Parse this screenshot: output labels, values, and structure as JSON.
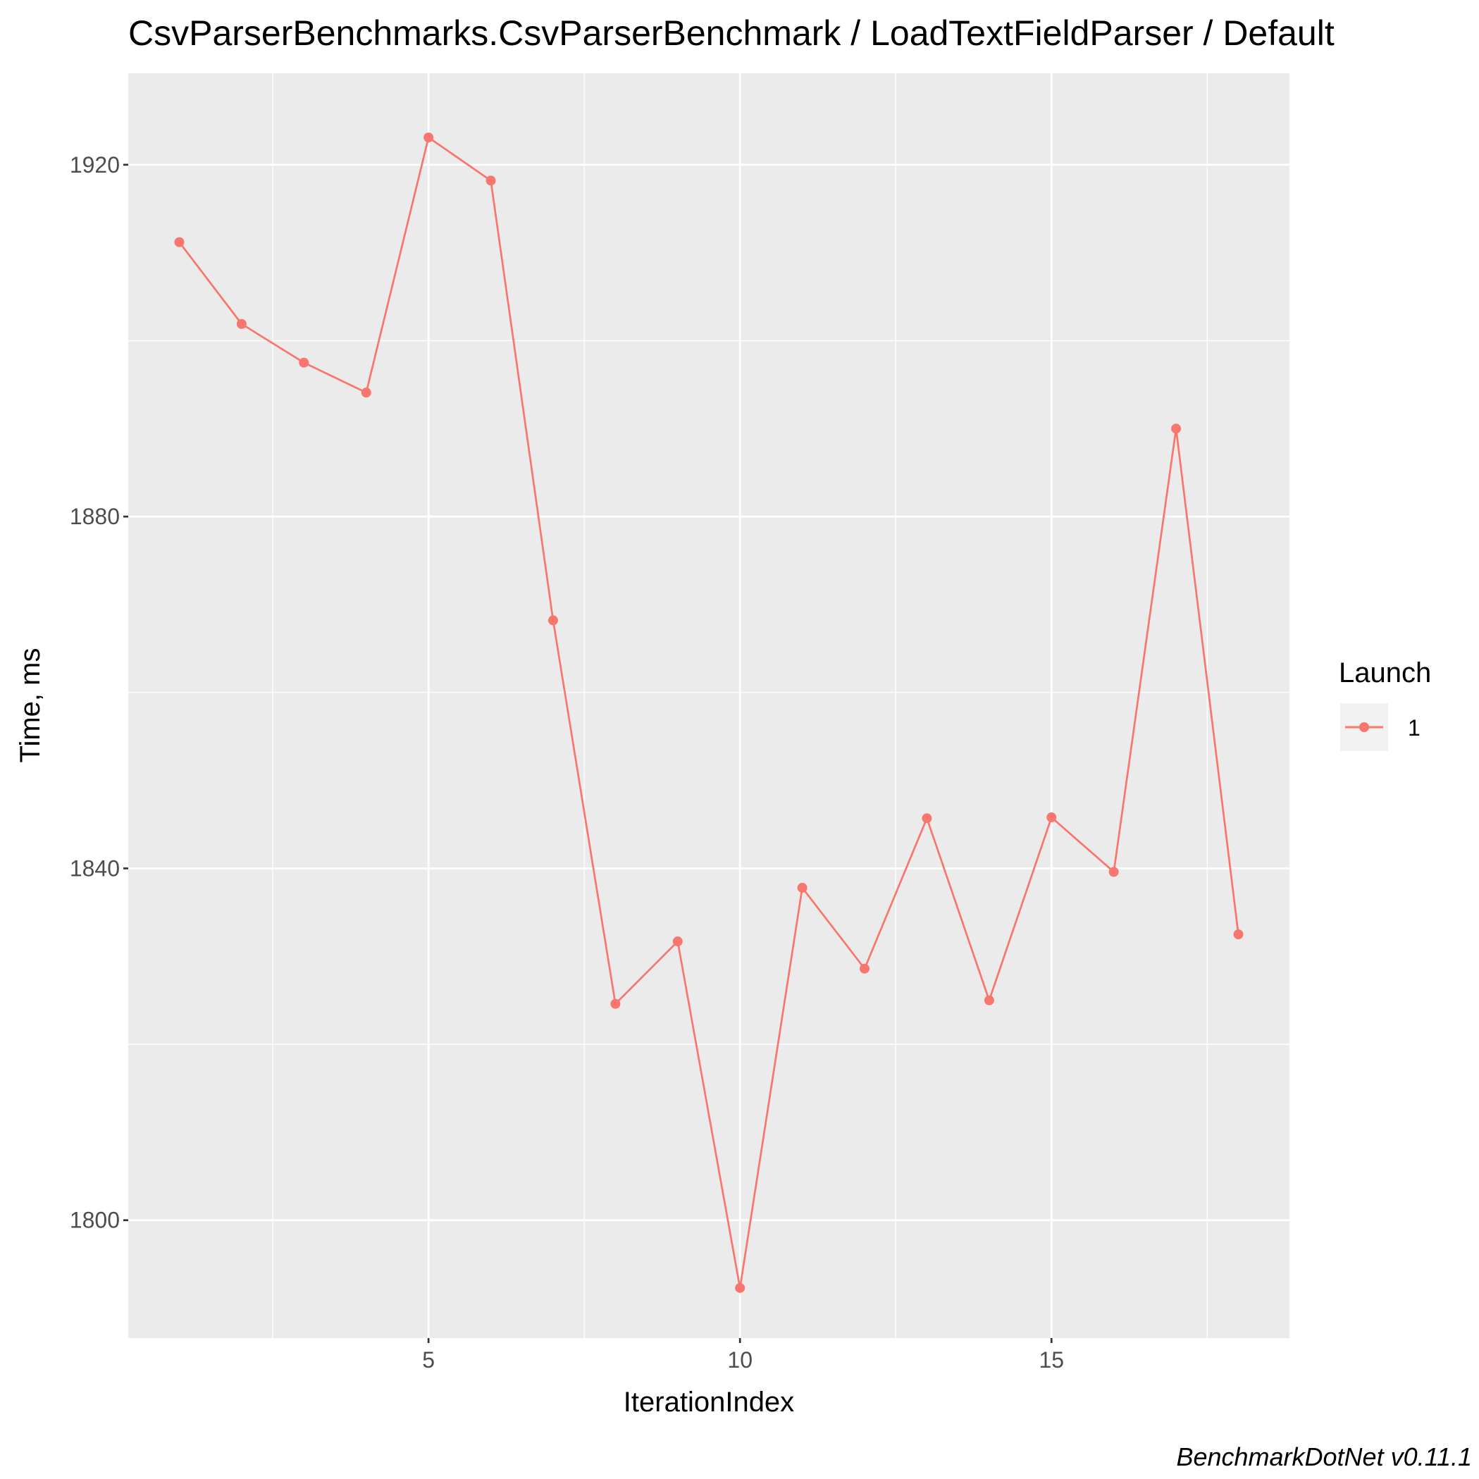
{
  "chart_data": {
    "type": "line",
    "title": "CsvParserBenchmarks.CsvParserBenchmark / LoadTextFieldParser / Default",
    "xlabel": "IterationIndex",
    "ylabel": "Time, ms",
    "xlim": [
      0.18,
      18.82
    ],
    "ylim": [
      1786.6,
      1930.4
    ],
    "x_ticks": [
      5,
      10,
      15
    ],
    "x_tick_labels": [
      "5",
      "10",
      "15"
    ],
    "y_ticks": [
      1800,
      1840,
      1880,
      1920
    ],
    "y_tick_labels": [
      "1800",
      "1840",
      "1880",
      "1920"
    ],
    "grid": true,
    "legend": {
      "title": "Launch",
      "position": "right"
    },
    "series": [
      {
        "name": "1",
        "color": "#F8766D",
        "x": [
          1,
          2,
          3,
          4,
          5,
          6,
          7,
          8,
          9,
          10,
          11,
          12,
          13,
          14,
          15,
          16,
          17,
          18
        ],
        "y": [
          1911.2,
          1901.9,
          1897.5,
          1894.1,
          1923.1,
          1918.2,
          1868.2,
          1824.6,
          1831.7,
          1792.3,
          1837.8,
          1828.6,
          1845.7,
          1825.0,
          1845.8,
          1839.6,
          1890.0,
          1832.5
        ]
      }
    ],
    "caption": "BenchmarkDotNet v0.11.1"
  },
  "colors": {
    "panel_background": "#EBEBEB",
    "grid": "#FFFFFF",
    "series": "#F8766D"
  }
}
